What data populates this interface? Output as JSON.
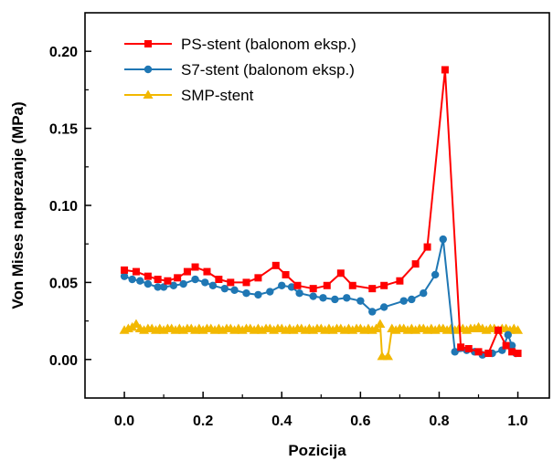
{
  "chart_data": {
    "type": "line",
    "xlabel": "Pozicija",
    "ylabel": "Von Mises naprezanje (MPa)",
    "xlim": [
      -0.1,
      1.08
    ],
    "ylim": [
      -0.025,
      0.225
    ],
    "x_ticks": [
      0.0,
      0.2,
      0.4,
      0.6,
      0.8,
      1.0
    ],
    "x_tick_labels": [
      "0.0",
      "0.2",
      "0.4",
      "0.6",
      "0.8",
      "1.0"
    ],
    "y_ticks": [
      0.0,
      0.05,
      0.1,
      0.15,
      0.2
    ],
    "y_tick_labels": [
      "0.00",
      "0.05",
      "0.10",
      "0.15",
      "0.20"
    ],
    "grid": false,
    "legend_position": "top-left",
    "series": [
      {
        "name": "PS-stent (balonom eksp.)",
        "color": "#ff0000",
        "marker": "square",
        "x": [
          0.0,
          0.03,
          0.06,
          0.085,
          0.11,
          0.135,
          0.16,
          0.18,
          0.21,
          0.24,
          0.27,
          0.31,
          0.34,
          0.385,
          0.41,
          0.44,
          0.48,
          0.515,
          0.55,
          0.58,
          0.63,
          0.66,
          0.7,
          0.74,
          0.77,
          0.815,
          0.855,
          0.875,
          0.9,
          0.925,
          0.95,
          0.97,
          0.985,
          1.0
        ],
        "y": [
          0.058,
          0.057,
          0.054,
          0.052,
          0.051,
          0.053,
          0.057,
          0.06,
          0.057,
          0.052,
          0.05,
          0.05,
          0.053,
          0.061,
          0.055,
          0.048,
          0.046,
          0.048,
          0.056,
          0.048,
          0.046,
          0.048,
          0.051,
          0.062,
          0.073,
          0.188,
          0.008,
          0.007,
          0.005,
          0.004,
          0.019,
          0.009,
          0.005,
          0.004
        ]
      },
      {
        "name": "S7-stent (balonom eksp.)",
        "color": "#1f77b4",
        "marker": "circle",
        "x": [
          0.0,
          0.02,
          0.04,
          0.06,
          0.085,
          0.1,
          0.125,
          0.15,
          0.18,
          0.205,
          0.225,
          0.255,
          0.28,
          0.31,
          0.34,
          0.37,
          0.4,
          0.425,
          0.445,
          0.48,
          0.505,
          0.535,
          0.565,
          0.6,
          0.63,
          0.66,
          0.71,
          0.73,
          0.76,
          0.79,
          0.81,
          0.84,
          0.87,
          0.89,
          0.91,
          0.935,
          0.96,
          0.975,
          0.985,
          0.995
        ],
        "y": [
          0.054,
          0.052,
          0.051,
          0.049,
          0.047,
          0.047,
          0.048,
          0.049,
          0.052,
          0.05,
          0.048,
          0.046,
          0.045,
          0.043,
          0.042,
          0.044,
          0.048,
          0.047,
          0.043,
          0.041,
          0.04,
          0.039,
          0.04,
          0.038,
          0.031,
          0.034,
          0.038,
          0.039,
          0.043,
          0.055,
          0.078,
          0.005,
          0.006,
          0.005,
          0.003,
          0.004,
          0.006,
          0.016,
          0.009,
          0.004
        ]
      },
      {
        "name": "SMP-stent",
        "color": "#f2b800",
        "marker": "triangle",
        "x": [
          0.0,
          0.01,
          0.02,
          0.03,
          0.04,
          0.05,
          0.06,
          0.07,
          0.08,
          0.09,
          0.1,
          0.11,
          0.12,
          0.13,
          0.14,
          0.15,
          0.16,
          0.17,
          0.18,
          0.19,
          0.2,
          0.21,
          0.22,
          0.23,
          0.24,
          0.25,
          0.26,
          0.27,
          0.28,
          0.29,
          0.3,
          0.31,
          0.32,
          0.33,
          0.34,
          0.35,
          0.36,
          0.37,
          0.38,
          0.39,
          0.4,
          0.41,
          0.42,
          0.43,
          0.44,
          0.45,
          0.46,
          0.47,
          0.48,
          0.49,
          0.5,
          0.51,
          0.52,
          0.53,
          0.54,
          0.55,
          0.56,
          0.57,
          0.58,
          0.59,
          0.6,
          0.61,
          0.62,
          0.63,
          0.64,
          0.65,
          0.655,
          0.67,
          0.68,
          0.69,
          0.7,
          0.71,
          0.72,
          0.73,
          0.74,
          0.75,
          0.76,
          0.77,
          0.78,
          0.79,
          0.8,
          0.81,
          0.82,
          0.83,
          0.84,
          0.85,
          0.86,
          0.87,
          0.88,
          0.89,
          0.9,
          0.91,
          0.92,
          0.93,
          0.94,
          0.95,
          0.96,
          0.97,
          0.98,
          0.99,
          1.0
        ],
        "y": [
          0.019,
          0.02,
          0.021,
          0.023,
          0.02,
          0.019,
          0.02,
          0.02,
          0.019,
          0.02,
          0.019,
          0.02,
          0.02,
          0.019,
          0.02,
          0.019,
          0.02,
          0.02,
          0.019,
          0.02,
          0.019,
          0.02,
          0.02,
          0.019,
          0.02,
          0.019,
          0.02,
          0.02,
          0.019,
          0.02,
          0.019,
          0.02,
          0.02,
          0.019,
          0.02,
          0.019,
          0.02,
          0.02,
          0.019,
          0.02,
          0.02,
          0.019,
          0.02,
          0.019,
          0.02,
          0.02,
          0.019,
          0.02,
          0.019,
          0.02,
          0.02,
          0.019,
          0.02,
          0.019,
          0.02,
          0.02,
          0.019,
          0.02,
          0.019,
          0.02,
          0.02,
          0.019,
          0.02,
          0.019,
          0.02,
          0.023,
          0.002,
          0.002,
          0.02,
          0.019,
          0.02,
          0.02,
          0.019,
          0.02,
          0.019,
          0.02,
          0.02,
          0.019,
          0.02,
          0.019,
          0.02,
          0.02,
          0.019,
          0.02,
          0.019,
          0.02,
          0.02,
          0.019,
          0.02,
          0.02,
          0.021,
          0.02,
          0.019,
          0.02,
          0.02,
          0.019,
          0.02,
          0.02,
          0.019,
          0.02,
          0.019
        ]
      }
    ]
  }
}
